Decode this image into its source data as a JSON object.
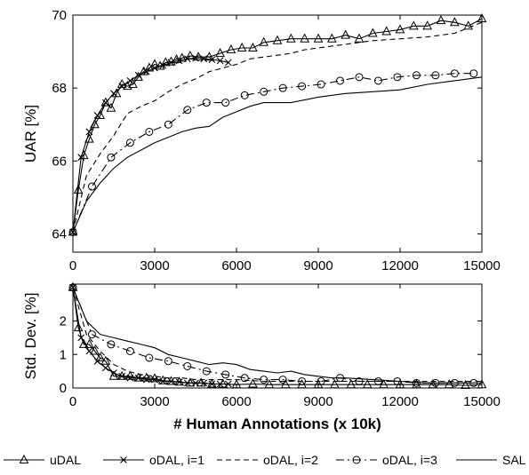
{
  "chart_data": [
    {
      "type": "line",
      "ylabel": "UAR [%]",
      "xlabel": "",
      "xlim": [
        0,
        15000
      ],
      "ylim": [
        63.5,
        70
      ],
      "xticks": [
        "0",
        "3000",
        "6000",
        "9000",
        "12000",
        "15000"
      ],
      "xtick_values": [
        0,
        3000,
        6000,
        9000,
        12000,
        15000
      ],
      "yticks": [
        "64",
        "66",
        "68",
        "70"
      ],
      "ytick_values": [
        64,
        66,
        68,
        70
      ],
      "series": [
        {
          "name": "uDAL",
          "marker": "triangle",
          "dash": "solid",
          "x": [
            0,
            200,
            400,
            600,
            800,
            1000,
            1200,
            1400,
            1600,
            1800,
            2000,
            2200,
            2400,
            2600,
            2800,
            3000,
            3200,
            3400,
            3600,
            3800,
            4000,
            4300,
            4600,
            5000,
            5400,
            5800,
            6200,
            6600,
            7000,
            7500,
            8000,
            8500,
            9000,
            9500,
            10000,
            10500,
            11000,
            11500,
            12000,
            12500,
            13000,
            13500,
            14000,
            14500,
            15000
          ],
          "y": [
            64.05,
            65.2,
            66.15,
            66.6,
            67.0,
            67.25,
            67.6,
            67.45,
            67.85,
            68.1,
            68.05,
            68.1,
            68.3,
            68.45,
            68.55,
            68.65,
            68.6,
            68.7,
            68.72,
            68.78,
            68.82,
            68.88,
            68.85,
            68.85,
            68.95,
            69.05,
            69.1,
            69.1,
            69.25,
            69.3,
            69.35,
            69.35,
            69.35,
            69.35,
            69.45,
            69.35,
            69.5,
            69.55,
            69.6,
            69.7,
            69.7,
            69.85,
            69.8,
            69.7,
            69.9
          ]
        },
        {
          "name": "oDAL, i=1",
          "marker": "x",
          "dash": "solid",
          "x": [
            0,
            300,
            600,
            900,
            1200,
            1500,
            1800,
            2100,
            2400,
            2700,
            3000,
            3300,
            3600,
            3900,
            4200,
            4500,
            4800,
            5100,
            5400,
            5700
          ],
          "y": [
            64.05,
            66.1,
            66.8,
            67.25,
            67.6,
            67.85,
            68.05,
            68.2,
            68.35,
            68.45,
            68.55,
            68.62,
            68.7,
            68.75,
            68.8,
            68.82,
            68.8,
            68.78,
            68.75,
            68.7
          ]
        },
        {
          "name": "oDAL, i=2",
          "marker": "none",
          "dash": "dashed",
          "x": [
            0,
            500,
            1000,
            1500,
            2000,
            2500,
            3000,
            3500,
            4000,
            4500,
            5000,
            5500,
            6000,
            6500,
            7000,
            7500,
            8000,
            8500,
            9000,
            9500,
            10000,
            11000,
            12000,
            13000,
            14000,
            15000
          ],
          "y": [
            64.05,
            65.6,
            66.2,
            66.7,
            67.3,
            67.5,
            67.65,
            67.9,
            68.1,
            68.25,
            68.45,
            68.55,
            68.65,
            68.8,
            68.85,
            68.9,
            68.95,
            69.05,
            69.1,
            69.15,
            69.2,
            69.3,
            69.35,
            69.4,
            69.5,
            69.8
          ]
        },
        {
          "name": "oDAL, i=3",
          "marker": "circle",
          "dash": "dashdot",
          "x": [
            0,
            700,
            1400,
            2100,
            2800,
            3500,
            4200,
            4900,
            5600,
            6300,
            7000,
            7700,
            8400,
            9100,
            9800,
            10500,
            11200,
            11900,
            12600,
            13300,
            14000,
            14700
          ],
          "y": [
            64.05,
            65.3,
            66.1,
            66.5,
            66.8,
            67.0,
            67.4,
            67.6,
            67.6,
            67.8,
            67.9,
            68.0,
            68.05,
            68.1,
            68.2,
            68.3,
            68.2,
            68.3,
            68.35,
            68.35,
            68.4,
            68.4
          ]
        },
        {
          "name": "SAL",
          "marker": "none",
          "dash": "solid",
          "x": [
            0,
            500,
            1000,
            1500,
            2000,
            2500,
            3000,
            3500,
            4000,
            4500,
            5000,
            5500,
            6000,
            6500,
            7000,
            7500,
            8000,
            9000,
            10000,
            11000,
            12000,
            13000,
            14000,
            15000
          ],
          "y": [
            64.05,
            64.9,
            65.4,
            65.8,
            66.1,
            66.3,
            66.5,
            66.65,
            66.8,
            66.9,
            66.95,
            67.2,
            67.35,
            67.5,
            67.6,
            67.6,
            67.6,
            67.75,
            67.85,
            67.9,
            67.95,
            68.1,
            68.2,
            68.3
          ]
        }
      ]
    },
    {
      "type": "line",
      "ylabel": "Std. Dev. [%]",
      "xlabel": "# Human Annotations (x 10k)",
      "xlim": [
        0,
        15000
      ],
      "ylim": [
        0,
        3.1
      ],
      "xticks": [
        "0",
        "3000",
        "6000",
        "9000",
        "12000",
        "15000"
      ],
      "xtick_values": [
        0,
        3000,
        6000,
        9000,
        12000,
        15000
      ],
      "yticks": [
        "0",
        "1",
        "2"
      ],
      "ytick_values": [
        0,
        1,
        2
      ],
      "series": [
        {
          "name": "uDAL",
          "marker": "triangle",
          "dash": "solid",
          "x": [
            0,
            200,
            400,
            600,
            800,
            1000,
            1200,
            1500,
            1800,
            2100,
            2400,
            2700,
            3000,
            3300,
            3600,
            3900,
            4300,
            4700,
            5100,
            5500,
            6000,
            6600,
            7200,
            7800,
            8400,
            9000,
            9600,
            10200,
            10800,
            11400,
            12000,
            12600,
            13200,
            13800,
            14400,
            15000
          ],
          "y": [
            3.0,
            1.8,
            1.3,
            1.3,
            1.1,
            0.9,
            0.8,
            0.35,
            0.35,
            0.35,
            0.3,
            0.3,
            0.28,
            0.22,
            0.2,
            0.18,
            0.15,
            0.15,
            0.12,
            0.12,
            0.1,
            0.12,
            0.1,
            0.1,
            0.1,
            0.1,
            0.1,
            0.1,
            0.1,
            0.1,
            0.1,
            0.1,
            0.1,
            0.1,
            0.08,
            0.1
          ]
        },
        {
          "name": "oDAL, i=1",
          "marker": "x",
          "dash": "solid",
          "x": [
            0,
            300,
            600,
            900,
            1200,
            1500,
            1800,
            2100,
            2400,
            2700,
            3000,
            3300,
            3600,
            3900,
            4200,
            4500,
            4800,
            5100,
            5400,
            5700
          ],
          "y": [
            3.0,
            1.5,
            1.1,
            0.8,
            0.6,
            0.45,
            0.35,
            0.3,
            0.3,
            0.25,
            0.25,
            0.2,
            0.2,
            0.18,
            0.15,
            0.15,
            0.15,
            0.12,
            0.12,
            0.12
          ]
        },
        {
          "name": "oDAL, i=2",
          "marker": "none",
          "dash": "dashed",
          "x": [
            0,
            500,
            1000,
            1500,
            2000,
            2500,
            3000,
            3500,
            4000,
            4500,
            5000,
            5500,
            6000,
            7000,
            8000,
            9000,
            10000,
            11000,
            12000,
            13000,
            14000,
            15000
          ],
          "y": [
            3.0,
            1.6,
            1.1,
            0.7,
            0.5,
            0.4,
            0.35,
            0.3,
            0.3,
            0.25,
            0.25,
            0.25,
            0.25,
            0.2,
            0.2,
            0.2,
            0.2,
            0.2,
            0.2,
            0.2,
            0.2,
            0.2
          ]
        },
        {
          "name": "oDAL, i=3",
          "marker": "circle",
          "dash": "dashdot",
          "x": [
            0,
            700,
            1400,
            2100,
            2800,
            3500,
            4200,
            4900,
            5600,
            6300,
            7000,
            7700,
            8400,
            9100,
            9800,
            10500,
            11200,
            11900,
            12600,
            13300,
            14000,
            14700
          ],
          "y": [
            3.0,
            1.6,
            1.3,
            1.1,
            0.9,
            0.8,
            0.65,
            0.5,
            0.4,
            0.3,
            0.25,
            0.25,
            0.2,
            0.2,
            0.3,
            0.2,
            0.2,
            0.2,
            0.15,
            0.15,
            0.15,
            0.15
          ]
        },
        {
          "name": "SAL",
          "marker": "none",
          "dash": "solid",
          "x": [
            0,
            500,
            1000,
            1500,
            2000,
            2500,
            3000,
            3500,
            4000,
            4500,
            5000,
            5500,
            6000,
            6500,
            7000,
            7500,
            8000,
            8500,
            9000,
            9500,
            10000,
            11000,
            12000,
            13000,
            14000,
            15000
          ],
          "y": [
            3.0,
            2.0,
            1.6,
            1.5,
            1.4,
            1.3,
            1.2,
            1.0,
            0.9,
            0.8,
            0.7,
            0.75,
            0.7,
            0.55,
            0.5,
            0.45,
            0.5,
            0.4,
            0.35,
            0.3,
            0.3,
            0.25,
            0.2,
            0.15,
            0.15,
            0.15
          ]
        }
      ]
    }
  ]
}
